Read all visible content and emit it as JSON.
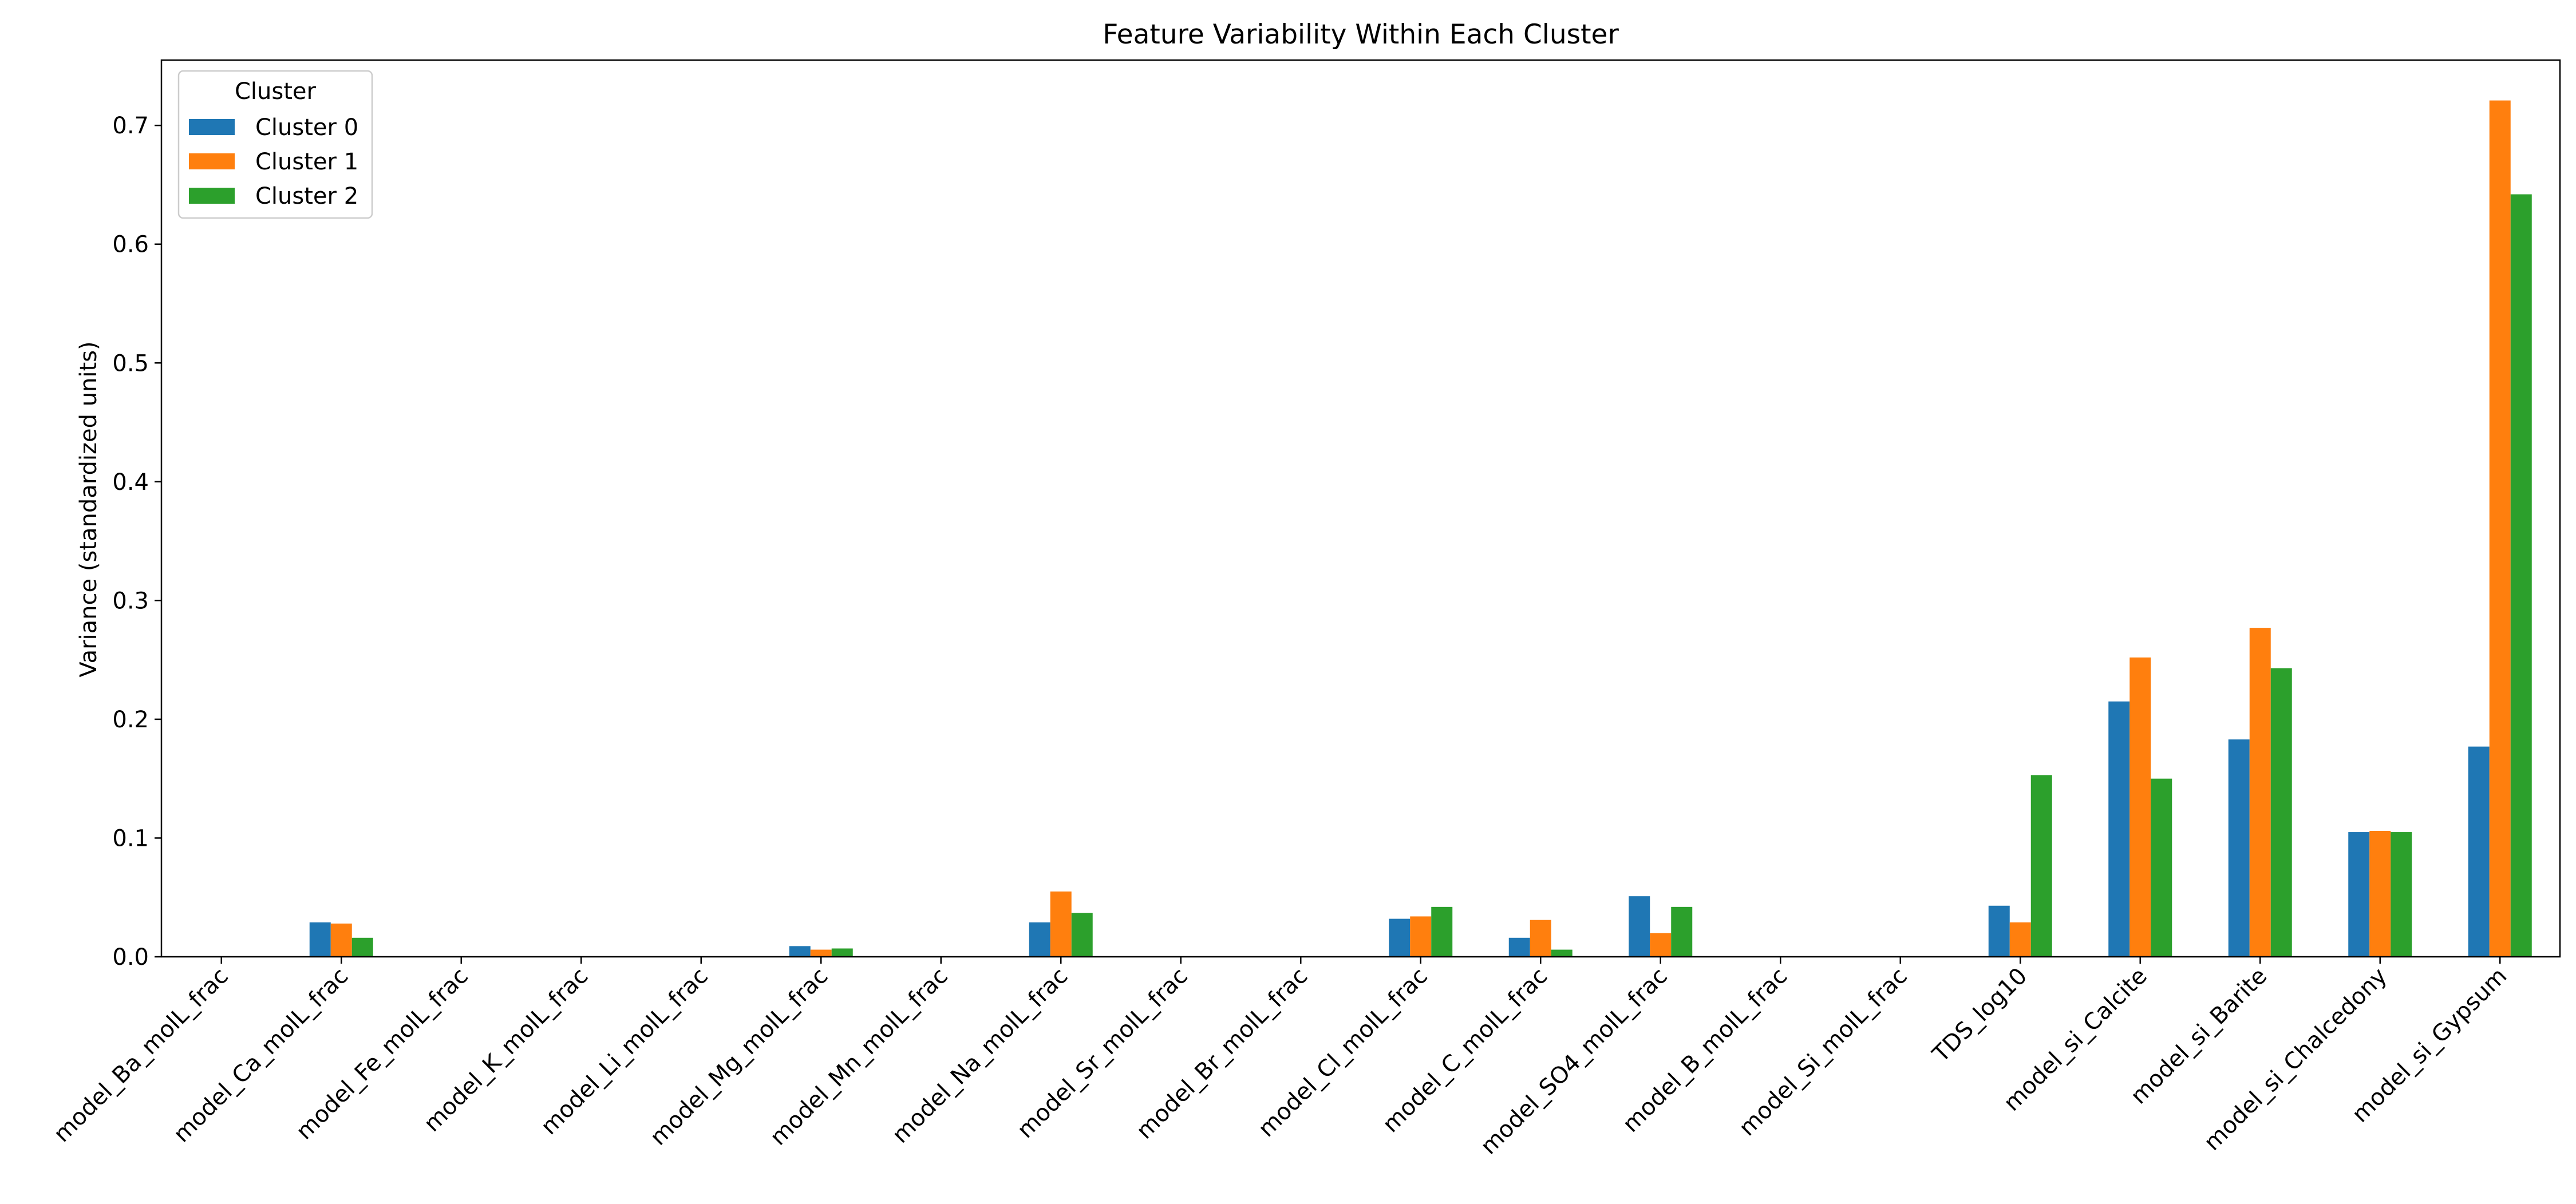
{
  "chart_data": {
    "type": "bar",
    "title": "Feature Variability Within Each Cluster",
    "xlabel": "",
    "ylabel": "Variance (standardized units)",
    "ylim": [
      0,
      0.755
    ],
    "yticks": [
      "0.0",
      "0.1",
      "0.2",
      "0.3",
      "0.4",
      "0.5",
      "0.6",
      "0.7"
    ],
    "grid": false,
    "legend": {
      "title": "Cluster",
      "position": "top-left"
    },
    "categories": [
      "model_Ba_molL_frac",
      "model_Ca_molL_frac",
      "model_Fe_molL_frac",
      "model_K_molL_frac",
      "model_Li_molL_frac",
      "model_Mg_molL_frac",
      "model_Mn_molL_frac",
      "model_Na_molL_frac",
      "model_Sr_molL_frac",
      "model_Br_molL_frac",
      "model_Cl_molL_frac",
      "model_C_molL_frac",
      "model_SO4_molL_frac",
      "model_B_molL_frac",
      "model_Si_molL_frac",
      "TDS_log10",
      "model_si_Calcite",
      "model_si_Barite",
      "model_si_Chalcedony",
      "model_si_Gypsum"
    ],
    "series": [
      {
        "name": "Cluster 0",
        "color": "#1f77b4",
        "values": [
          0,
          0.029,
          0,
          0,
          0,
          0.009,
          0,
          0.029,
          0,
          0,
          0.032,
          0.016,
          0.051,
          0,
          0,
          0.043,
          0.215,
          0.183,
          0.105,
          0.177
        ]
      },
      {
        "name": "Cluster 1",
        "color": "#ff7f0e",
        "values": [
          0,
          0.028,
          0,
          0,
          0,
          0.006,
          0,
          0.055,
          0,
          0,
          0.034,
          0.031,
          0.02,
          0,
          0,
          0.029,
          0.252,
          0.277,
          0.106,
          0.721
        ]
      },
      {
        "name": "Cluster 2",
        "color": "#2ca02c",
        "values": [
          0,
          0.016,
          0,
          0,
          0,
          0.007,
          0,
          0.037,
          0,
          0,
          0.042,
          0.006,
          0.042,
          0,
          0,
          0.153,
          0.15,
          0.243,
          0.105,
          0.642
        ]
      }
    ]
  }
}
